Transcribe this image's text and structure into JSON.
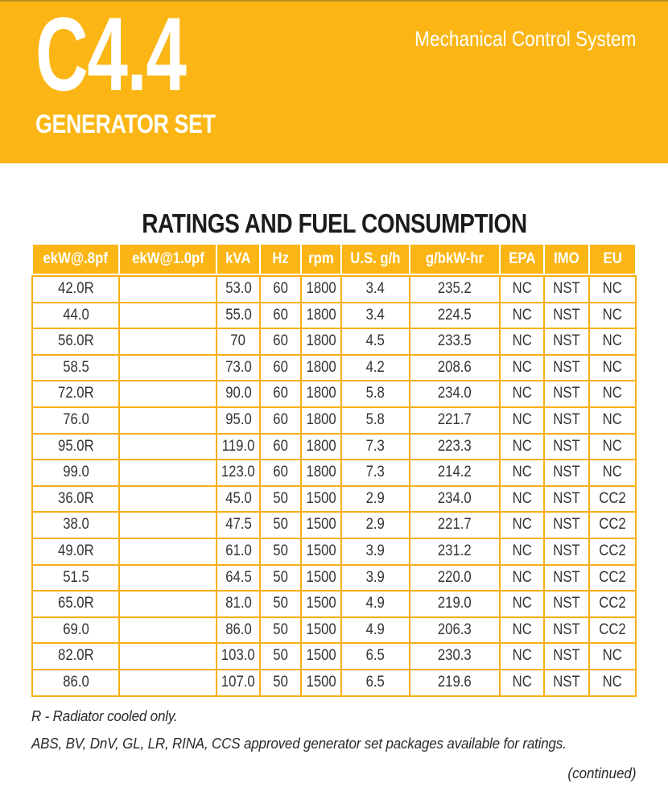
{
  "banner": {
    "model": "C4.4",
    "subtitle": "GENERATOR SET",
    "tagline": "Mechanical Control System",
    "bg_color": "#FBB615",
    "text_color": "#FFFFFF"
  },
  "section": {
    "title": "RATINGS AND FUEL CONSUMPTION"
  },
  "table": {
    "header_bg_color": "#FBB615",
    "grid_line_color": "#F9AF14",
    "columns": [
      "ekW@.8pf",
      "ekW@1.0pf",
      "kVA",
      "Hz",
      "rpm",
      "U.S. g/h",
      "g/bkW-hr",
      "EPA",
      "IMO",
      "EU"
    ],
    "rows": [
      [
        "42.0R",
        "",
        "53.0",
        "60",
        "1800",
        "3.4",
        "235.2",
        "NC",
        "NST",
        "NC"
      ],
      [
        "44.0",
        "",
        "55.0",
        "60",
        "1800",
        "3.4",
        "224.5",
        "NC",
        "NST",
        "NC"
      ],
      [
        "56.0R",
        "",
        "70",
        "60",
        "1800",
        "4.5",
        "233.5",
        "NC",
        "NST",
        "NC"
      ],
      [
        "58.5",
        "",
        "73.0",
        "60",
        "1800",
        "4.2",
        "208.6",
        "NC",
        "NST",
        "NC"
      ],
      [
        "72.0R",
        "",
        "90.0",
        "60",
        "1800",
        "5.8",
        "234.0",
        "NC",
        "NST",
        "NC"
      ],
      [
        "76.0",
        "",
        "95.0",
        "60",
        "1800",
        "5.8",
        "221.7",
        "NC",
        "NST",
        "NC"
      ],
      [
        "95.0R",
        "",
        "119.0",
        "60",
        "1800",
        "7.3",
        "223.3",
        "NC",
        "NST",
        "NC"
      ],
      [
        "99.0",
        "",
        "123.0",
        "60",
        "1800",
        "7.3",
        "214.2",
        "NC",
        "NST",
        "NC"
      ],
      [
        "36.0R",
        "",
        "45.0",
        "50",
        "1500",
        "2.9",
        "234.0",
        "NC",
        "NST",
        "CC2"
      ],
      [
        "38.0",
        "",
        "47.5",
        "50",
        "1500",
        "2.9",
        "221.7",
        "NC",
        "NST",
        "CC2"
      ],
      [
        "49.0R",
        "",
        "61.0",
        "50",
        "1500",
        "3.9",
        "231.2",
        "NC",
        "NST",
        "CC2"
      ],
      [
        "51.5",
        "",
        "64.5",
        "50",
        "1500",
        "3.9",
        "220.0",
        "NC",
        "NST",
        "CC2"
      ],
      [
        "65.0R",
        "",
        "81.0",
        "50",
        "1500",
        "4.9",
        "219.0",
        "NC",
        "NST",
        "CC2"
      ],
      [
        "69.0",
        "",
        "86.0",
        "50",
        "1500",
        "4.9",
        "206.3",
        "NC",
        "NST",
        "CC2"
      ],
      [
        "82.0R",
        "",
        "103.0",
        "50",
        "1500",
        "6.5",
        "230.3",
        "NC",
        "NST",
        "NC"
      ],
      [
        "86.0",
        "",
        "107.0",
        "50",
        "1500",
        "6.5",
        "219.6",
        "NC",
        "NST",
        "NC"
      ]
    ]
  },
  "notes": {
    "note1": "R - Radiator cooled only.",
    "note2": "ABS, BV, DnV, GL, LR, RINA, CCS approved generator set packages available for ratings.",
    "continued": "(continued)"
  }
}
